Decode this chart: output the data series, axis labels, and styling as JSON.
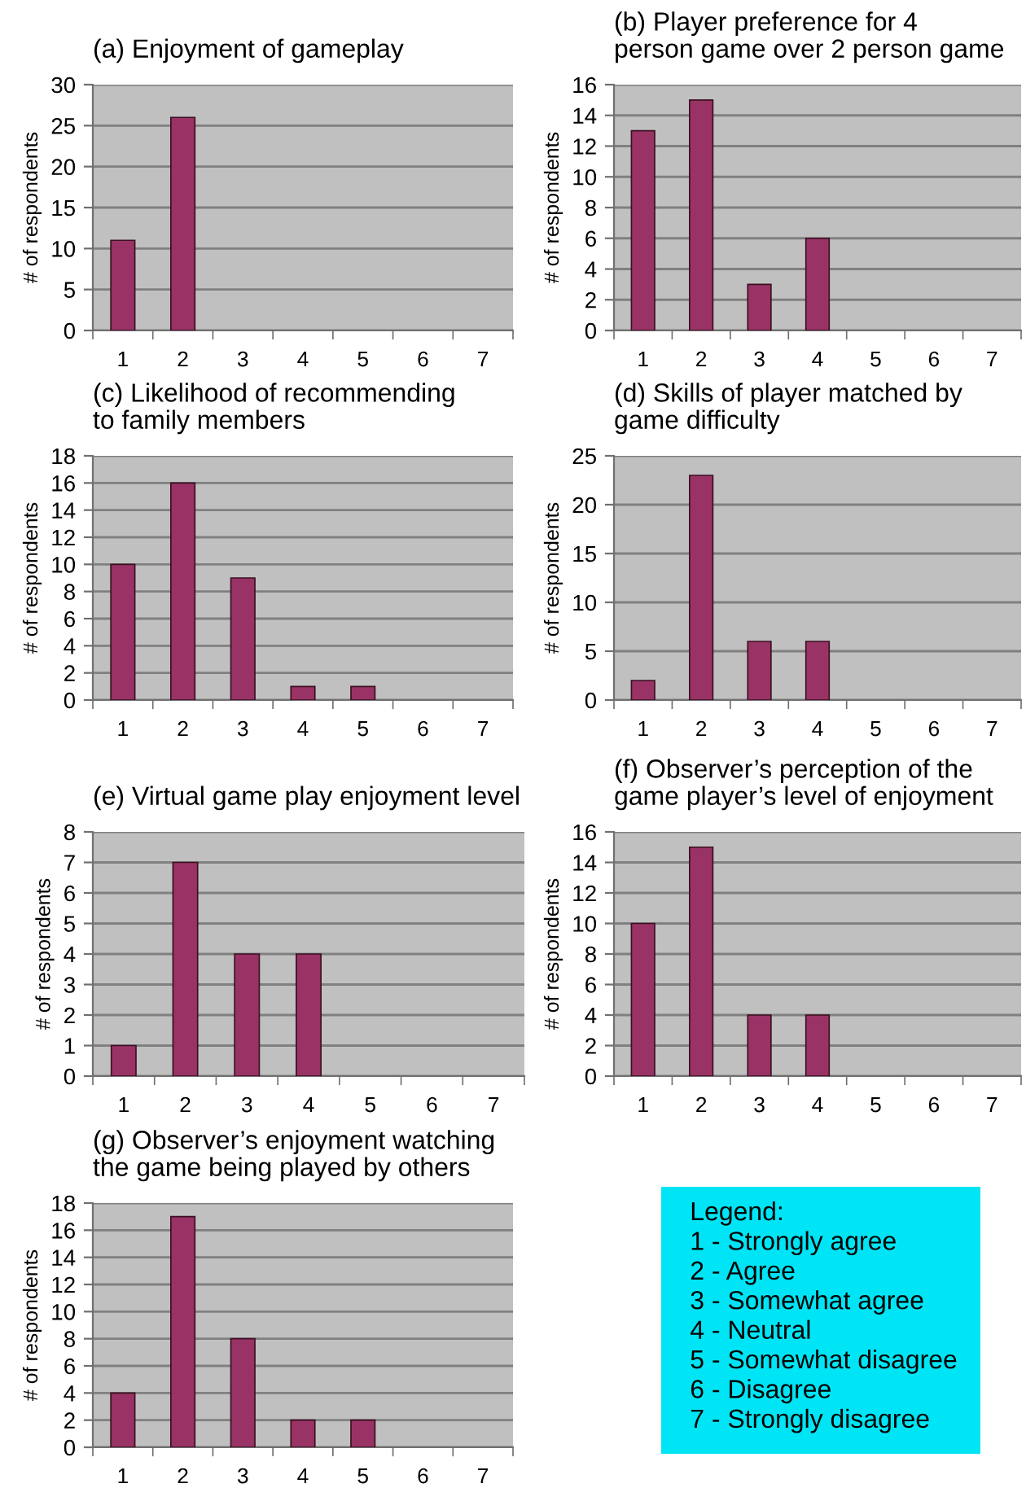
{
  "chart_data": [
    {
      "type": "bar",
      "title": "(a) Enjoyment of gameplay",
      "ylabel": "# of respondents",
      "categories": [
        "1",
        "2",
        "3",
        "4",
        "5",
        "6",
        "7"
      ],
      "series": [
        {
          "color": "#993366",
          "values": [
            11,
            26,
            0,
            0,
            0,
            0,
            0
          ]
        }
      ],
      "ylim": [
        0,
        30
      ],
      "yticks": [
        0,
        5,
        10,
        15,
        20,
        25,
        30
      ],
      "grid": "y",
      "legend": false
    },
    {
      "type": "bar",
      "title": "(b) Player preference for 4\nperson game over 2 person game",
      "ylabel": "# of respondents",
      "categories": [
        "1",
        "2",
        "3",
        "4",
        "5",
        "6",
        "7"
      ],
      "series": [
        {
          "color": "#993366",
          "values": [
            13,
            15,
            3,
            6,
            0,
            0,
            0
          ]
        }
      ],
      "ylim": [
        0,
        16
      ],
      "yticks": [
        0,
        2,
        4,
        6,
        8,
        10,
        12,
        14,
        16
      ],
      "grid": "y",
      "legend": false
    },
    {
      "type": "bar",
      "title": "(c) Likelihood of recommending\nto family members",
      "ylabel": "# of respondents",
      "categories": [
        "1",
        "2",
        "3",
        "4",
        "5",
        "6",
        "7"
      ],
      "series": [
        {
          "color": "#993366",
          "values": [
            10,
            16,
            9,
            1,
            1,
            0,
            0
          ]
        }
      ],
      "ylim": [
        0,
        18
      ],
      "yticks": [
        0,
        2,
        4,
        6,
        8,
        10,
        12,
        14,
        16,
        18
      ],
      "grid": "y",
      "legend": false
    },
    {
      "type": "bar",
      "title": "(d) Skills of player matched by\ngame difficulty",
      "ylabel": "# of respondents",
      "categories": [
        "1",
        "2",
        "3",
        "4",
        "5",
        "6",
        "7"
      ],
      "series": [
        {
          "color": "#993366",
          "values": [
            2,
            23,
            6,
            6,
            0,
            0,
            0
          ]
        }
      ],
      "ylim": [
        0,
        25
      ],
      "yticks": [
        0,
        5,
        10,
        15,
        20,
        25
      ],
      "grid": "y",
      "legend": false
    },
    {
      "type": "bar",
      "title": "(e) Virtual game play enjoyment level",
      "ylabel": "# of respondents",
      "categories": [
        "1",
        "2",
        "3",
        "4",
        "5",
        "6",
        "7"
      ],
      "series": [
        {
          "color": "#993366",
          "values": [
            1,
            7,
            4,
            4,
            0,
            0,
            0
          ]
        }
      ],
      "ylim": [
        0,
        8
      ],
      "yticks": [
        0,
        1,
        2,
        3,
        4,
        5,
        6,
        7,
        8
      ],
      "grid": "y",
      "legend": false
    },
    {
      "type": "bar",
      "title": "(f) Observer’s perception of the\ngame player’s level of enjoyment",
      "ylabel": "# of respondents",
      "categories": [
        "1",
        "2",
        "3",
        "4",
        "5",
        "6",
        "7"
      ],
      "series": [
        {
          "color": "#993366",
          "values": [
            10,
            15,
            4,
            4,
            0,
            0,
            0
          ]
        }
      ],
      "ylim": [
        0,
        16
      ],
      "yticks": [
        0,
        2,
        4,
        6,
        8,
        10,
        12,
        14,
        16
      ],
      "grid": "y",
      "legend": false
    },
    {
      "type": "bar",
      "title": "(g) Observer’s enjoyment watching\nthe game being played by others",
      "ylabel": "# of respondents",
      "categories": [
        "1",
        "2",
        "3",
        "4",
        "5",
        "6",
        "7"
      ],
      "series": [
        {
          "color": "#993366",
          "values": [
            4,
            17,
            8,
            2,
            2,
            0,
            0
          ]
        }
      ],
      "ylim": [
        0,
        18
      ],
      "yticks": [
        0,
        2,
        4,
        6,
        8,
        10,
        12,
        14,
        16,
        18
      ],
      "grid": "y",
      "legend": false
    },
    {
      "type": "other",
      "title": "Legend:",
      "annotations": [
        "1 - Strongly agree",
        "2 - Agree",
        "3 - Somewhat agree",
        "4 - Neutral",
        "5 - Somewhat disagree",
        "6 - Disagree",
        "7 - Strongly disagree"
      ]
    }
  ]
}
